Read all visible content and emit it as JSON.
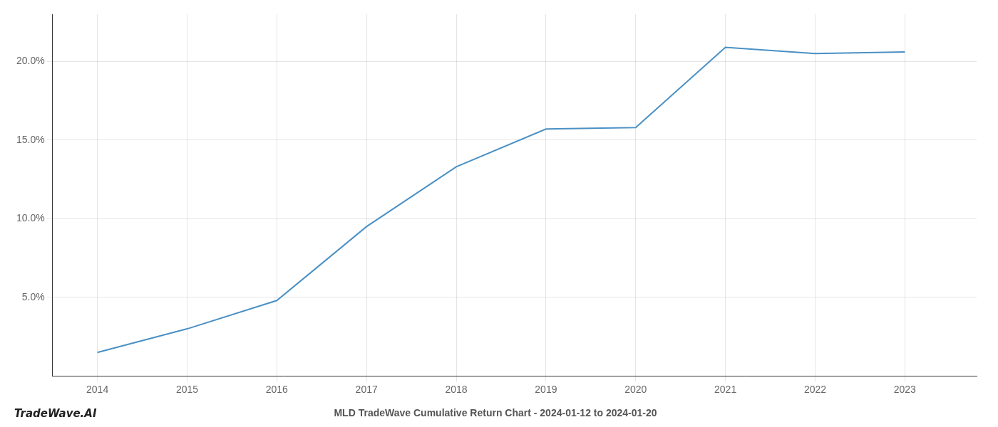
{
  "chart_data": {
    "type": "line",
    "title": "MLD TradeWave Cumulative Return Chart - 2024-01-12 to 2024-01-20",
    "annotations": [
      {
        "text": "TradeWave.AI"
      }
    ],
    "x": [
      2014,
      2015,
      2016,
      2017,
      2018,
      2019,
      2020,
      2021,
      2022,
      2023
    ],
    "values": [
      1.5,
      3.0,
      4.8,
      9.5,
      13.3,
      15.7,
      15.8,
      20.9,
      20.5,
      20.6
    ],
    "color": "#4a90c4",
    "marker": "none",
    "line_style": "solid",
    "xlim": [
      2013.5,
      2023.8
    ],
    "xticks": [
      2014,
      2015,
      2016,
      2017,
      2018,
      2019,
      2020,
      2021,
      2022,
      2023
    ],
    "ylim": [
      0,
      23
    ],
    "yticks": [
      {
        "value": 5,
        "label": "5.0%"
      },
      {
        "value": 10,
        "label": "10.0%"
      },
      {
        "value": 15,
        "label": "15.0%"
      },
      {
        "value": 20,
        "label": "20.0%"
      }
    ],
    "grid": true,
    "legend": "none"
  }
}
